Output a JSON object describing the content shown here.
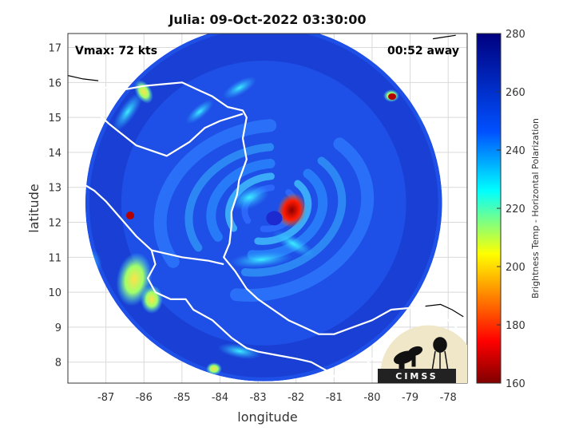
{
  "title": "Julia: 09-Oct-2022 03:30:00",
  "annotations": {
    "vmax": "Vmax: 72 kts",
    "time_away": "00:52 away"
  },
  "axes": {
    "xlabel": "longitude",
    "ylabel": "latitude",
    "xlim": [
      -88,
      -77.5
    ],
    "ylim": [
      7.4,
      17.4
    ],
    "xticks": [
      -87,
      -86,
      -85,
      -84,
      -83,
      -82,
      -81,
      -80,
      -79,
      -78
    ],
    "yticks": [
      8,
      9,
      10,
      11,
      12,
      13,
      14,
      15,
      16,
      17
    ],
    "grid": true
  },
  "colorbar": {
    "label": "Brightness Temp - Horizontal Polarization",
    "range": [
      160,
      280
    ],
    "ticks": [
      160,
      180,
      200,
      220,
      240,
      260,
      280
    ],
    "colormap": "jet",
    "stops": [
      "#7f0000",
      "#ff0000",
      "#ffff00",
      "#00ffff",
      "#0050ff",
      "#00007f"
    ]
  },
  "storm": {
    "name": "Julia",
    "center_lon": -82.7,
    "center_lat": 12.3
  },
  "swath": {
    "center_lon": -82.85,
    "center_lat": 12.55,
    "radius_lat": 5.1
  },
  "logo": {
    "text": "CIMSS"
  }
}
